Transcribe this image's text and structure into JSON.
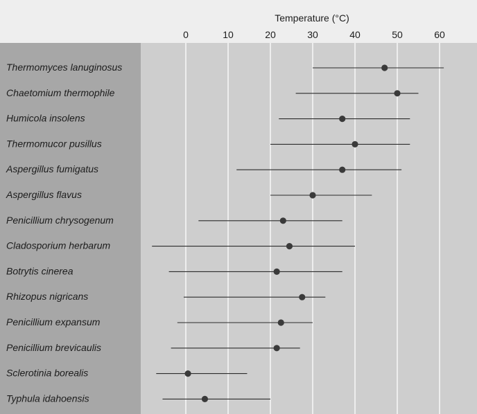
{
  "chart_data": {
    "type": "scatter",
    "title": "",
    "xlabel": "Temperature (°C)",
    "ylabel": "",
    "xlim": [
      -5,
      65
    ],
    "xticks": [
      0,
      10,
      20,
      30,
      40,
      50,
      60
    ],
    "grid": true,
    "legend": "none",
    "series": [
      {
        "points": [
          {
            "species": "Thermomyces lanuginosus",
            "min": 30,
            "max": 61,
            "optimum": 47
          },
          {
            "species": "Chaetomium thermophile",
            "min": 26,
            "max": 55,
            "optimum": 50
          },
          {
            "species": "Humicola insolens",
            "min": 22,
            "max": 53,
            "optimum": 37
          },
          {
            "species": "Thermomucor pusillus",
            "min": 20,
            "max": 53,
            "optimum": 40
          },
          {
            "species": "Aspergillus fumigatus",
            "min": 12,
            "max": 51,
            "optimum": 37
          },
          {
            "species": "Aspergillus flavus",
            "min": 20,
            "max": 44,
            "optimum": 30
          },
          {
            "species": "Penicillium chrysogenum",
            "min": 3,
            "max": 37,
            "optimum": 23
          },
          {
            "species": "Cladosporium herbarum",
            "min": -8,
            "max": 40,
            "optimum": 24.5
          },
          {
            "species": "Botrytis cinerea",
            "min": -4,
            "max": 37,
            "optimum": 21.5
          },
          {
            "species": "Rhizopus nigricans",
            "min": -0.5,
            "max": 33,
            "optimum": 27.5
          },
          {
            "species": "Penicillium expansum",
            "min": -2,
            "max": 30,
            "optimum": 22.5
          },
          {
            "species": "Penicillium brevicaulis",
            "min": -3.5,
            "max": 27,
            "optimum": 21.5
          },
          {
            "species": "Sclerotinia borealis",
            "min": -7,
            "max": 14.5,
            "optimum": 0.5
          },
          {
            "species": "Typhula idahoensis",
            "min": -5.5,
            "max": 20,
            "optimum": 4.5
          }
        ]
      }
    ]
  },
  "colors": {
    "page_bg": "#e6e6e6",
    "label_band": "#a7a7a7",
    "plot_bg": "#cecece",
    "header_band": "#eeeeee",
    "gridline": "#ffffff",
    "range_line": "#2b2b2b",
    "optimum_dot": "#3a3a3a"
  }
}
